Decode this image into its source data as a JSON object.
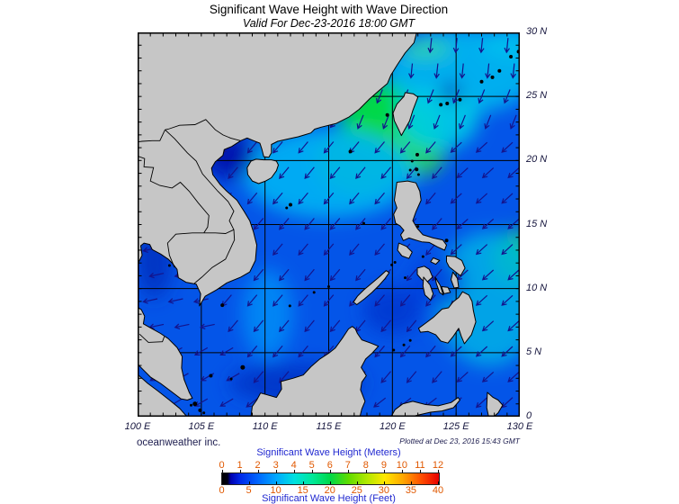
{
  "header": {
    "title": "Significant Wave Height with Wave Direction",
    "subtitle": "Valid For Dec-23-2016 18:00 GMT"
  },
  "footer": {
    "credit": "oceanweather inc.",
    "plotted": "Plotted at Dec 23, 2016 15:43 GMT"
  },
  "map": {
    "lon_min": 100,
    "lon_max": 130,
    "lat_min": 0,
    "lat_max": 30,
    "lat_labels": [
      "30 N",
      "25 N",
      "20 N",
      "15 N",
      "10 N",
      "5 N",
      "0"
    ],
    "lon_labels": [
      "100 E",
      "105 E",
      "110 E",
      "115 E",
      "120 E",
      "125 E",
      "130 E"
    ],
    "colors": {
      "ocean_base": "#0455e8",
      "land": "#c6c6c6",
      "coast": "#000000",
      "grid": "#000000",
      "arrow": "#14148c",
      "frame": "#000000"
    },
    "wave_direction_zones": [
      {
        "lon0": 100,
        "lon1": 106.5,
        "lat0": 5.5,
        "lat1": 13.8,
        "angle": 168
      },
      {
        "lon0": 100,
        "lon1": 109,
        "lat0": 0,
        "lat1": 5.5,
        "angle": 150
      },
      {
        "lon0": 117.5,
        "lon1": 130,
        "lat0": 26,
        "lat1": 30,
        "angle": 96
      },
      {
        "lon0": 117.5,
        "lon1": 130,
        "lat0": 21.5,
        "lat1": 26,
        "angle": 112
      },
      {
        "lon0": 124,
        "lon1": 130,
        "lat0": 0,
        "lat1": 21.5,
        "angle": 138
      },
      {
        "lon0": 109,
        "lon1": 124,
        "lat0": 0,
        "lat1": 3,
        "angle": 142
      }
    ],
    "default_wave_angle": 130,
    "wave_field": [
      {
        "lon": 119.8,
        "lat": 22.8,
        "rx": 55,
        "ry": 50,
        "color": "#00d848",
        "op": 1
      },
      {
        "lon": 117.5,
        "lat": 20.0,
        "rx": 50,
        "ry": 40,
        "color": "#20d848",
        "op": 0.85
      },
      {
        "lon": 121.8,
        "lat": 20.8,
        "rx": 35,
        "ry": 30,
        "color": "#30dc50",
        "op": 0.8
      },
      {
        "lon": 115.0,
        "lat": 19.0,
        "rx": 95,
        "ry": 50,
        "color": "#00b4f4",
        "op": 0.9
      },
      {
        "lon": 125.5,
        "lat": 27.0,
        "rx": 85,
        "ry": 48,
        "color": "#00b8f0",
        "op": 0.9
      },
      {
        "lon": 122.6,
        "lat": 28.7,
        "rx": 28,
        "ry": 10,
        "color": "#40e090",
        "op": 0.7
      },
      {
        "lon": 123.6,
        "lat": 23.3,
        "rx": 45,
        "ry": 35,
        "color": "#00cce8",
        "op": 0.9
      },
      {
        "lon": 129.6,
        "lat": 12.4,
        "rx": 26,
        "ry": 30,
        "color": "#20d848",
        "op": 0.95
      },
      {
        "lon": 127.6,
        "lat": 9.2,
        "rx": 60,
        "ry": 75,
        "color": "#00b0e8",
        "op": 0.85
      },
      {
        "lon": 107.2,
        "lat": 20.3,
        "rx": 28,
        "ry": 25,
        "color": "#0018b0",
        "op": 1
      },
      {
        "lon": 101.3,
        "lat": 12.2,
        "rx": 20,
        "ry": 42,
        "color": "#0030c0",
        "op": 0.9
      },
      {
        "lon": 120.0,
        "lat": 8.3,
        "rx": 32,
        "ry": 26,
        "color": "#0038d0",
        "op": 0.9
      },
      {
        "lon": 112.5,
        "lat": 2.6,
        "rx": 75,
        "ry": 22,
        "color": "#0034c8",
        "op": 0.9
      },
      {
        "lon": 110.2,
        "lat": 8.0,
        "rx": 28,
        "ry": 50,
        "color": "#0090f8",
        "op": 0.8
      },
      {
        "lon": 124.6,
        "lat": 25.3,
        "rx": 12,
        "ry": 10,
        "color": "#0028b8",
        "op": 0.9
      },
      {
        "lon": 129.3,
        "lat": 29.2,
        "rx": 32,
        "ry": 18,
        "color": "#00c0f0",
        "op": 0.9
      },
      {
        "lon": 123.5,
        "lat": 10.5,
        "rx": 30,
        "ry": 28,
        "color": "#0040dd",
        "op": 0.8
      }
    ]
  },
  "legend": {
    "title_meters": "Significant Wave Height (Meters)",
    "title_feet": "Significant Wave Height (Feet)",
    "title_color": "#2028d0",
    "number_color": "#e05800",
    "meters_ticks": [
      "0",
      "1",
      "2",
      "3",
      "4",
      "5",
      "6",
      "7",
      "8",
      "9",
      "10",
      "11",
      "12"
    ],
    "feet_ticks": [
      "0",
      "5",
      "10",
      "15",
      "20",
      "25",
      "30",
      "35",
      "40"
    ],
    "gradient": [
      [
        0,
        "#000000"
      ],
      [
        2.5,
        "#000014"
      ],
      [
        4,
        "#0000b0"
      ],
      [
        8.3,
        "#0028e8"
      ],
      [
        16.7,
        "#0068ff"
      ],
      [
        25,
        "#00a8ff"
      ],
      [
        33.3,
        "#00e0e0"
      ],
      [
        41.7,
        "#00e898"
      ],
      [
        50,
        "#00d848"
      ],
      [
        58.3,
        "#60dc00"
      ],
      [
        66.7,
        "#b0e800"
      ],
      [
        75,
        "#ffe800"
      ],
      [
        83.3,
        "#ffa800"
      ],
      [
        91.7,
        "#ff5000"
      ],
      [
        100,
        "#e80000"
      ]
    ]
  }
}
